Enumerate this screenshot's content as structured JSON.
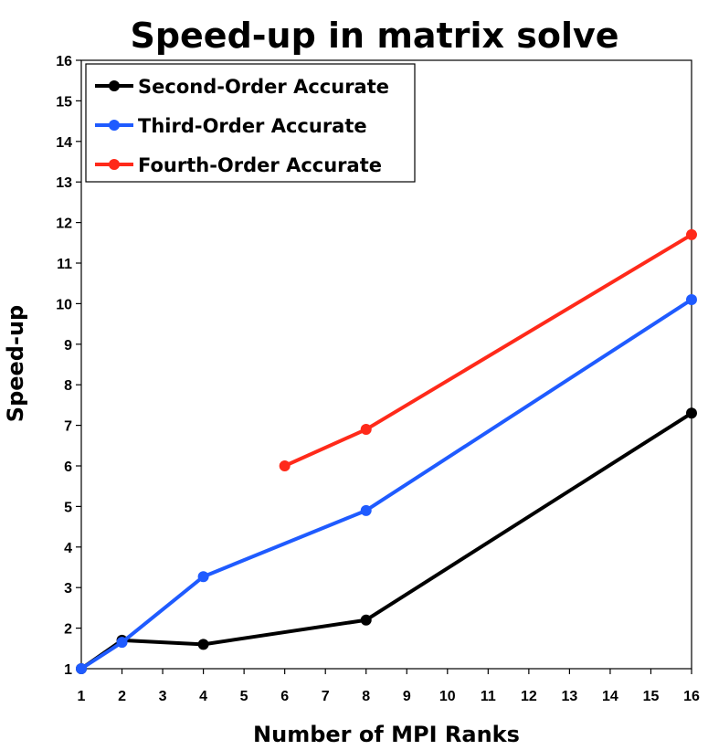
{
  "chart_data": {
    "type": "line",
    "title": "Speed-up in matrix solve",
    "xlabel": "Number of MPI Ranks",
    "ylabel": "Speed-up",
    "xlim": [
      1,
      16
    ],
    "ylim": [
      1,
      16
    ],
    "x_ticks": [
      "1",
      "2",
      "3",
      "4",
      "5",
      "6",
      "7",
      "8",
      "9",
      "10",
      "11",
      "12",
      "13",
      "14",
      "15",
      "16"
    ],
    "y_ticks": [
      "1",
      "2",
      "3",
      "4",
      "5",
      "6",
      "7",
      "8",
      "9",
      "10",
      "11",
      "12",
      "13",
      "14",
      "15",
      "16"
    ],
    "grid": false,
    "legend_position": "top-left",
    "series": [
      {
        "name": "Second-Order Accurate",
        "color": "#000000",
        "x": [
          1,
          2,
          4,
          8,
          16
        ],
        "y": [
          1.0,
          1.7,
          1.6,
          2.2,
          7.3
        ]
      },
      {
        "name": "Third-Order Accurate",
        "color": "#1f5bff",
        "x": [
          1,
          2,
          4,
          8,
          16
        ],
        "y": [
          1.0,
          1.65,
          3.27,
          4.9,
          10.1
        ]
      },
      {
        "name": "Fourth-Order Accurate",
        "color": "#ff2a1a",
        "x": [
          6,
          8,
          16
        ],
        "y": [
          6.0,
          6.9,
          11.7
        ]
      }
    ]
  }
}
